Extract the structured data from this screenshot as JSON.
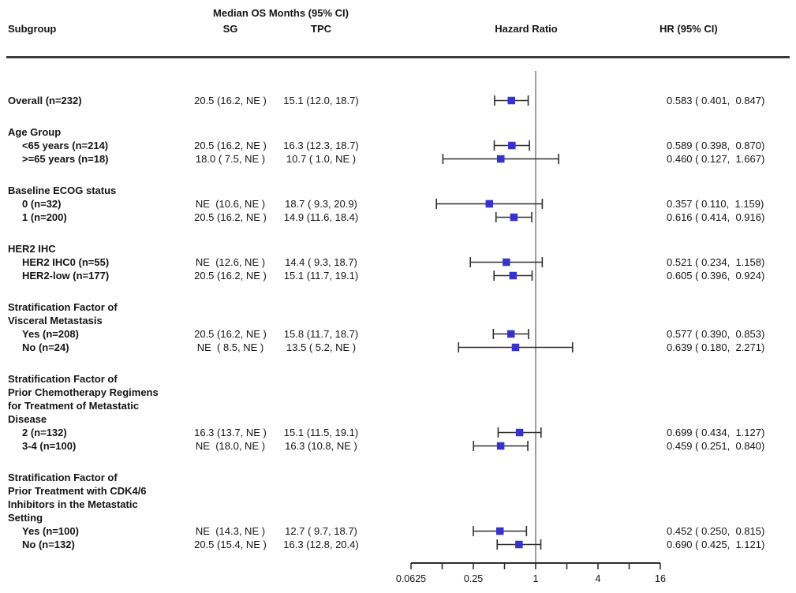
{
  "header": {
    "subgroup_col": "Subgroup",
    "median_os_title": "Median OS Months (95% CI)",
    "sg_col": "SG",
    "tpc_col": "TPC",
    "hazard_ratio_col": "Hazard Ratio",
    "hr_ci_col": "HR (95% CI)"
  },
  "chart_data": {
    "type": "forest",
    "x_axis": {
      "scale": "log",
      "min": 0.0625,
      "max": 16,
      "reference_line": 1,
      "ticks": [
        {
          "v": 0.0625,
          "label": "0.0625"
        },
        {
          "v": 0.125,
          "label": ""
        },
        {
          "v": 0.25,
          "label": "0.25"
        },
        {
          "v": 0.5,
          "label": ""
        },
        {
          "v": 1,
          "label": "1"
        },
        {
          "v": 2,
          "label": ""
        },
        {
          "v": 4,
          "label": "4"
        },
        {
          "v": 8,
          "label": ""
        },
        {
          "v": 16,
          "label": "16"
        }
      ]
    },
    "colors": {
      "marker": "#3533cb",
      "whisker": "#2e2e2e",
      "ref_line": "#9d9d9d",
      "rule": "#3a3a3a",
      "text": "#141414"
    },
    "sections": [
      {
        "header_lines": [],
        "rows": [
          {
            "label": "Overall (n=232)",
            "indent": false,
            "sg": "20.5 (16.2, NE )",
            "tpc": "15.1 (12.0, 18.7)",
            "hr": 0.583,
            "ci_low": 0.401,
            "ci_high": 0.847,
            "hr_text": "0.583 ( 0.401,  0.847)"
          }
        ]
      },
      {
        "header_lines": [
          "Age Group"
        ],
        "rows": [
          {
            "label": "<65 years (n=214)",
            "indent": true,
            "sg": "20.5 (16.2, NE )",
            "tpc": "16.3 (12.3, 18.7)",
            "hr": 0.589,
            "ci_low": 0.398,
            "ci_high": 0.87,
            "hr_text": "0.589 ( 0.398,  0.870)"
          },
          {
            "label": ">=65 years (n=18)",
            "indent": true,
            "sg": "18.0 ( 7.5, NE )",
            "tpc": "10.7 ( 1.0, NE )",
            "hr": 0.46,
            "ci_low": 0.127,
            "ci_high": 1.667,
            "hr_text": "0.460 ( 0.127,  1.667)"
          }
        ]
      },
      {
        "header_lines": [
          "Baseline ECOG status"
        ],
        "rows": [
          {
            "label": "0 (n=32)",
            "indent": true,
            "sg": "NE  (10.6, NE )",
            "tpc": "18.7 ( 9.3, 20.9)",
            "hr": 0.357,
            "ci_low": 0.11,
            "ci_high": 1.159,
            "hr_text": "0.357 ( 0.110,  1.159)"
          },
          {
            "label": "1 (n=200)",
            "indent": true,
            "sg": "20.5 (16.2, NE )",
            "tpc": "14.9 (11.6, 18.4)",
            "hr": 0.616,
            "ci_low": 0.414,
            "ci_high": 0.916,
            "hr_text": "0.616 ( 0.414,  0.916)"
          }
        ]
      },
      {
        "header_lines": [
          "HER2 IHC"
        ],
        "rows": [
          {
            "label": "HER2 IHC0 (n=55)",
            "indent": true,
            "sg": "NE  (12.6, NE )",
            "tpc": "14.4 ( 9.3, 18.7)",
            "hr": 0.521,
            "ci_low": 0.234,
            "ci_high": 1.158,
            "hr_text": "0.521 ( 0.234,  1.158)"
          },
          {
            "label": "HER2-low (n=177)",
            "indent": true,
            "sg": "20.5 (16.2, NE )",
            "tpc": "15.1 (11.7, 19.1)",
            "hr": 0.605,
            "ci_low": 0.396,
            "ci_high": 0.924,
            "hr_text": "0.605 ( 0.396,  0.924)"
          }
        ]
      },
      {
        "header_lines": [
          "Stratification Factor of",
          "Visceral Metastasis"
        ],
        "rows": [
          {
            "label": "Yes (n=208)",
            "indent": true,
            "sg": "20.5 (16.2, NE )",
            "tpc": "15.8 (11.7, 18.7)",
            "hr": 0.577,
            "ci_low": 0.39,
            "ci_high": 0.853,
            "hr_text": "0.577 ( 0.390,  0.853)"
          },
          {
            "label": "No (n=24)",
            "indent": true,
            "sg": "NE  ( 8.5, NE )",
            "tpc": "13.5 ( 5.2, NE )",
            "hr": 0.639,
            "ci_low": 0.18,
            "ci_high": 2.271,
            "hr_text": "0.639 ( 0.180,  2.271)"
          }
        ]
      },
      {
        "header_lines": [
          "Stratification Factor of",
          "Prior Chemotherapy Regimens",
          "for Treatment of Metastatic",
          "Disease"
        ],
        "rows": [
          {
            "label": "2 (n=132)",
            "indent": true,
            "sg": "16.3 (13.7, NE )",
            "tpc": "15.1 (11.5, 19.1)",
            "hr": 0.699,
            "ci_low": 0.434,
            "ci_high": 1.127,
            "hr_text": "0.699 ( 0.434,  1.127)"
          },
          {
            "label": "3-4 (n=100)",
            "indent": true,
            "sg": "NE  (18.0, NE )",
            "tpc": "16.3 (10.8, NE )",
            "hr": 0.459,
            "ci_low": 0.251,
            "ci_high": 0.84,
            "hr_text": "0.459 ( 0.251,  0.840)"
          }
        ]
      },
      {
        "header_lines": [
          "Stratification Factor of",
          "Prior Treatment with CDK4/6",
          "Inhibitors in the Metastatic",
          "Setting"
        ],
        "rows": [
          {
            "label": "Yes (n=100)",
            "indent": true,
            "sg": "NE  (14.3, NE )",
            "tpc": "12.7 ( 9.7, 18.7)",
            "hr": 0.452,
            "ci_low": 0.25,
            "ci_high": 0.815,
            "hr_text": "0.452 ( 0.250,  0.815)"
          },
          {
            "label": "No (n=132)",
            "indent": true,
            "sg": "20.5 (15.4, NE )",
            "tpc": "16.3 (12.8, 20.4)",
            "hr": 0.69,
            "ci_low": 0.425,
            "ci_high": 1.121,
            "hr_text": "0.690 ( 0.425,  1.121)"
          }
        ]
      }
    ]
  }
}
